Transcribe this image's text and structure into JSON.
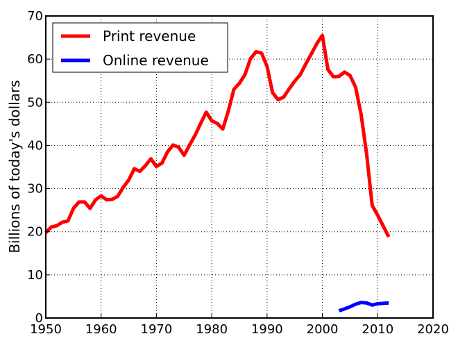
{
  "chart_data": {
    "type": "line",
    "title": "",
    "xlabel": "",
    "ylabel": "Billions of today's dollars",
    "xlim": [
      1950,
      2020
    ],
    "ylim": [
      0,
      70
    ],
    "xticks": [
      "1950",
      "1960",
      "1970",
      "1980",
      "1990",
      "2000",
      "2010",
      "2020"
    ],
    "yticks": [
      "0",
      "10",
      "20",
      "30",
      "40",
      "50",
      "60",
      "70"
    ],
    "grid": true,
    "legend_position": "top-left",
    "series": [
      {
        "name": "Print revenue",
        "color": "#ff0000",
        "x": [
          1950,
          1951,
          1952,
          1953,
          1954,
          1955,
          1956,
          1957,
          1958,
          1959,
          1960,
          1961,
          1962,
          1963,
          1964,
          1965,
          1966,
          1967,
          1968,
          1969,
          1970,
          1971,
          1972,
          1973,
          1974,
          1975,
          1976,
          1977,
          1978,
          1979,
          1980,
          1981,
          1982,
          1983,
          1984,
          1985,
          1986,
          1987,
          1988,
          1989,
          1990,
          1991,
          1992,
          1993,
          1994,
          1995,
          1996,
          1997,
          1998,
          1999,
          2000,
          2001,
          2002,
          2003,
          2004,
          2005,
          2006,
          2007,
          2008,
          2009,
          2010,
          2011,
          2012
        ],
        "values": [
          19.8,
          21.1,
          21.4,
          22.2,
          22.5,
          25.4,
          26.9,
          26.9,
          25.4,
          27.4,
          28.3,
          27.4,
          27.5,
          28.2,
          30.3,
          32.0,
          34.6,
          34.0,
          35.3,
          36.9,
          35.1,
          35.9,
          38.5,
          40.1,
          39.6,
          37.7,
          40.1,
          42.4,
          45.1,
          47.7,
          45.7,
          45.1,
          43.8,
          48.0,
          53.0,
          54.4,
          56.4,
          60.1,
          61.7,
          61.4,
          58.3,
          52.2,
          50.6,
          51.2,
          53.1,
          54.9,
          56.4,
          58.9,
          61.2,
          63.6,
          65.5,
          57.6,
          55.9,
          56.0,
          57.0,
          56.2,
          53.5,
          47.2,
          38.0,
          26.1,
          23.8,
          21.3,
          18.8
        ]
      },
      {
        "name": "Online revenue",
        "color": "#0000ff",
        "x": [
          2003,
          2004,
          2005,
          2006,
          2007,
          2008,
          2009,
          2010,
          2011,
          2012
        ],
        "values": [
          1.7,
          2.1,
          2.6,
          3.2,
          3.6,
          3.5,
          3.0,
          3.3,
          3.4,
          3.5
        ]
      }
    ]
  }
}
